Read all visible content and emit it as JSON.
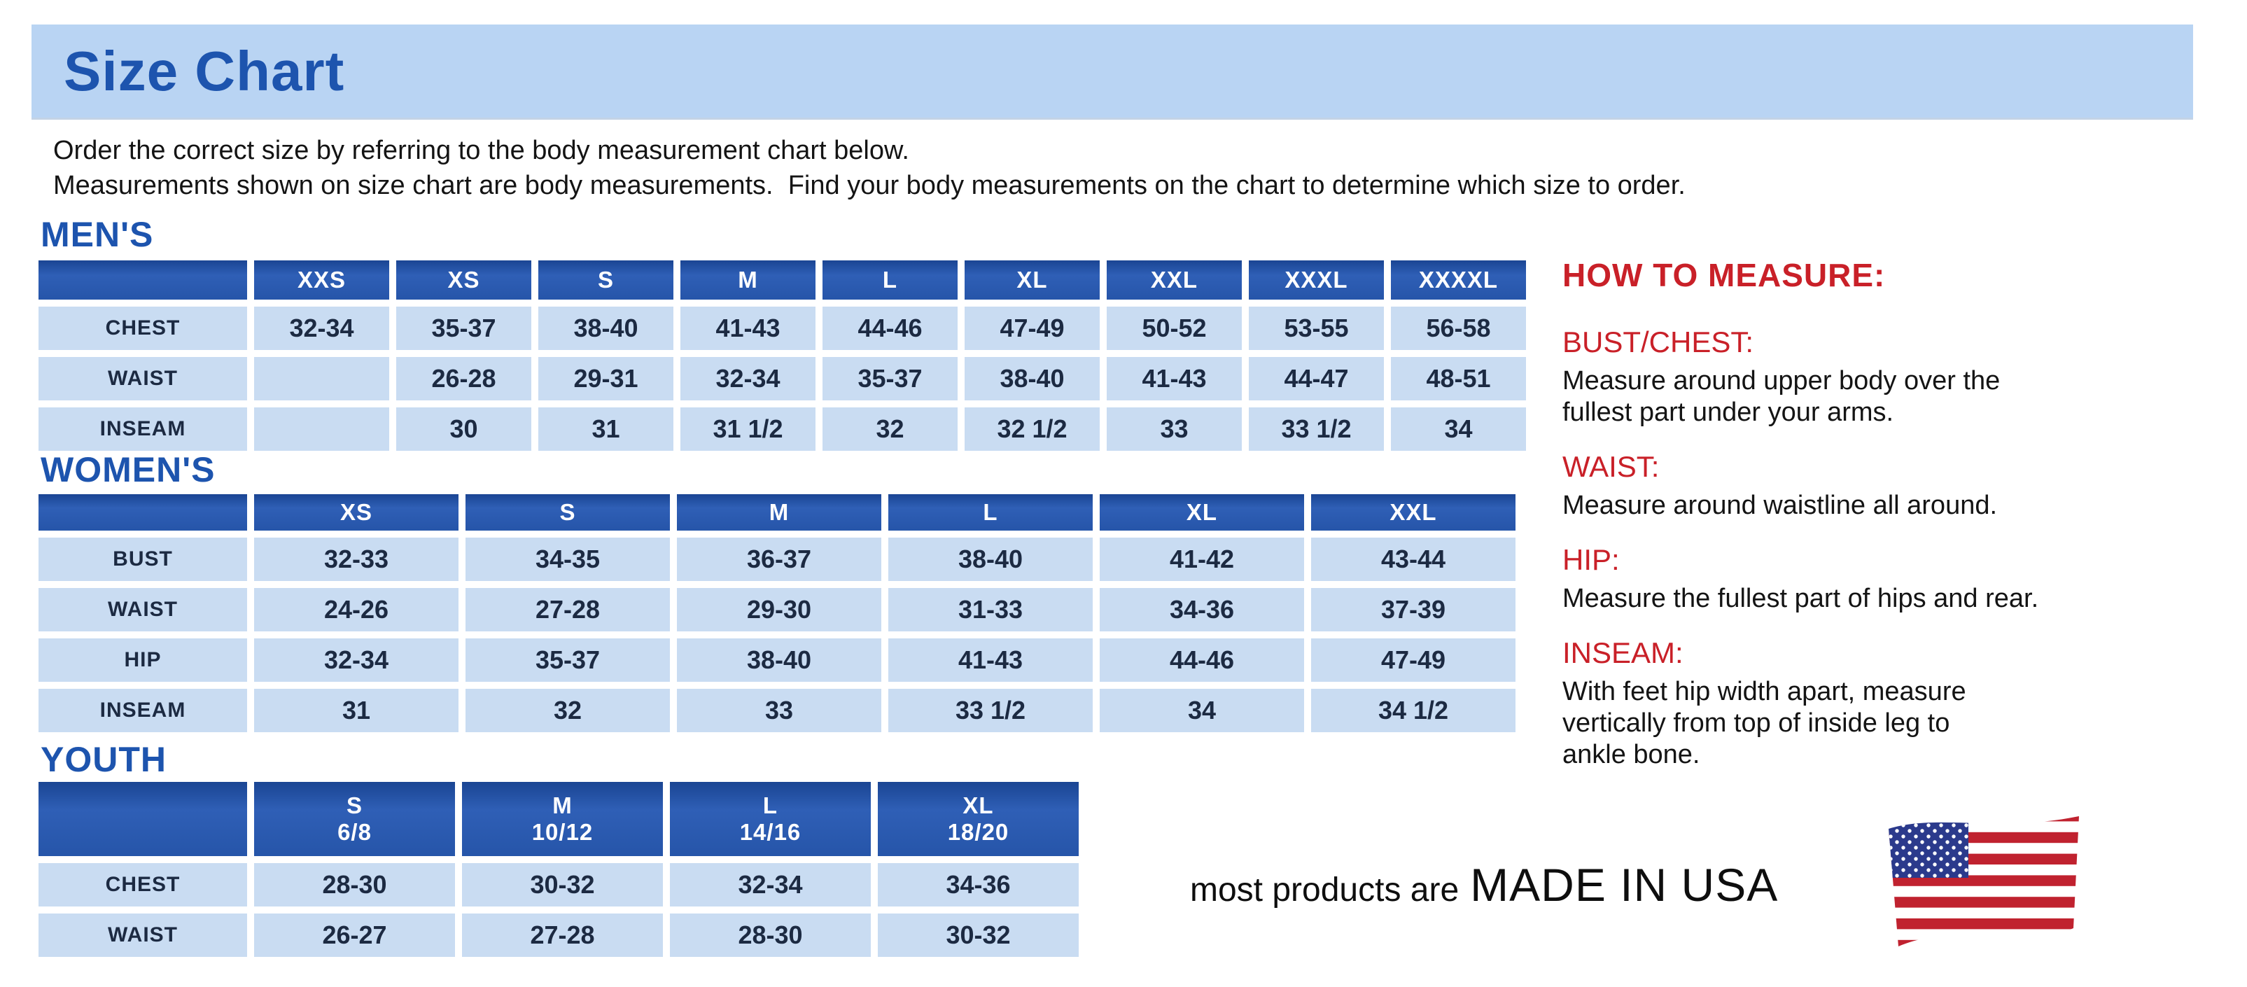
{
  "page": {
    "title": "Size Chart",
    "intro_line1": "Order the correct size by referring to the body measurement chart below.",
    "intro_line2": "Measurements shown on size chart are body measurements.  Find your body measurements on the chart to determine which size to order."
  },
  "colors": {
    "header_bar_bg": "#b9d4f3",
    "heading_blue": "#1d54ae",
    "table_header_blue": "#2655a9",
    "table_cell_blue": "#c9dcf2",
    "cell_text_navy": "#1c2a42",
    "accent_red": "#c92028",
    "flag_red": "#c0222f",
    "flag_canton_blue": "#2b3a8c"
  },
  "chart_data": [
    {
      "type": "table",
      "id": "mens",
      "title": "MEN'S",
      "columns": [
        "XXS",
        "XS",
        "S",
        "M",
        "L",
        "XL",
        "XXL",
        "XXXL",
        "XXXXL"
      ],
      "rows": [
        {
          "label": "CHEST",
          "values": [
            "32-34",
            "35-37",
            "38-40",
            "41-43",
            "44-46",
            "47-49",
            "50-52",
            "53-55",
            "56-58"
          ]
        },
        {
          "label": "WAIST",
          "values": [
            "",
            "26-28",
            "29-31",
            "32-34",
            "35-37",
            "38-40",
            "41-43",
            "44-47",
            "48-51"
          ]
        },
        {
          "label": "INSEAM",
          "values": [
            "",
            "30",
            "31",
            "31 1/2",
            "32",
            "32 1/2",
            "33",
            "33 1/2",
            "34"
          ]
        }
      ]
    },
    {
      "type": "table",
      "id": "womens",
      "title": "WOMEN'S",
      "columns": [
        "XS",
        "S",
        "M",
        "L",
        "XL",
        "XXL"
      ],
      "rows": [
        {
          "label": "BUST",
          "values": [
            "32-33",
            "34-35",
            "36-37",
            "38-40",
            "41-42",
            "43-44"
          ]
        },
        {
          "label": "WAIST",
          "values": [
            "24-26",
            "27-28",
            "29-30",
            "31-33",
            "34-36",
            "37-39"
          ]
        },
        {
          "label": "HIP",
          "values": [
            "32-34",
            "35-37",
            "38-40",
            "41-43",
            "44-46",
            "47-49"
          ]
        },
        {
          "label": "INSEAM",
          "values": [
            "31",
            "32",
            "33",
            "33 1/2",
            "34",
            "34 1/2"
          ]
        }
      ]
    },
    {
      "type": "table",
      "id": "youth",
      "title": "YOUTH",
      "columns": [
        "S\n6/8",
        "M\n10/12",
        "L\n14/16",
        "XL\n18/20"
      ],
      "rows": [
        {
          "label": "CHEST",
          "values": [
            "28-30",
            "30-32",
            "32-34",
            "34-36"
          ]
        },
        {
          "label": "WAIST",
          "values": [
            "26-27",
            "27-28",
            "28-30",
            "30-32"
          ]
        }
      ]
    }
  ],
  "how_to_measure": {
    "heading": "HOW TO MEASURE:",
    "items": [
      {
        "label": "BUST/CHEST:",
        "text": "Measure around upper body over the\nfullest part under your arms."
      },
      {
        "label": "WAIST:",
        "text": "Measure around waistline all around."
      },
      {
        "label": "HIP:",
        "text": "Measure the fullest part of hips and rear."
      },
      {
        "label": "INSEAM:",
        "text": "With feet hip width apart, measure\nvertically from top of inside leg to\nankle bone."
      }
    ]
  },
  "footer": {
    "prefix": "most products are",
    "emphasis": "MADE IN USA",
    "flag_icon": "us-flag-icon"
  }
}
